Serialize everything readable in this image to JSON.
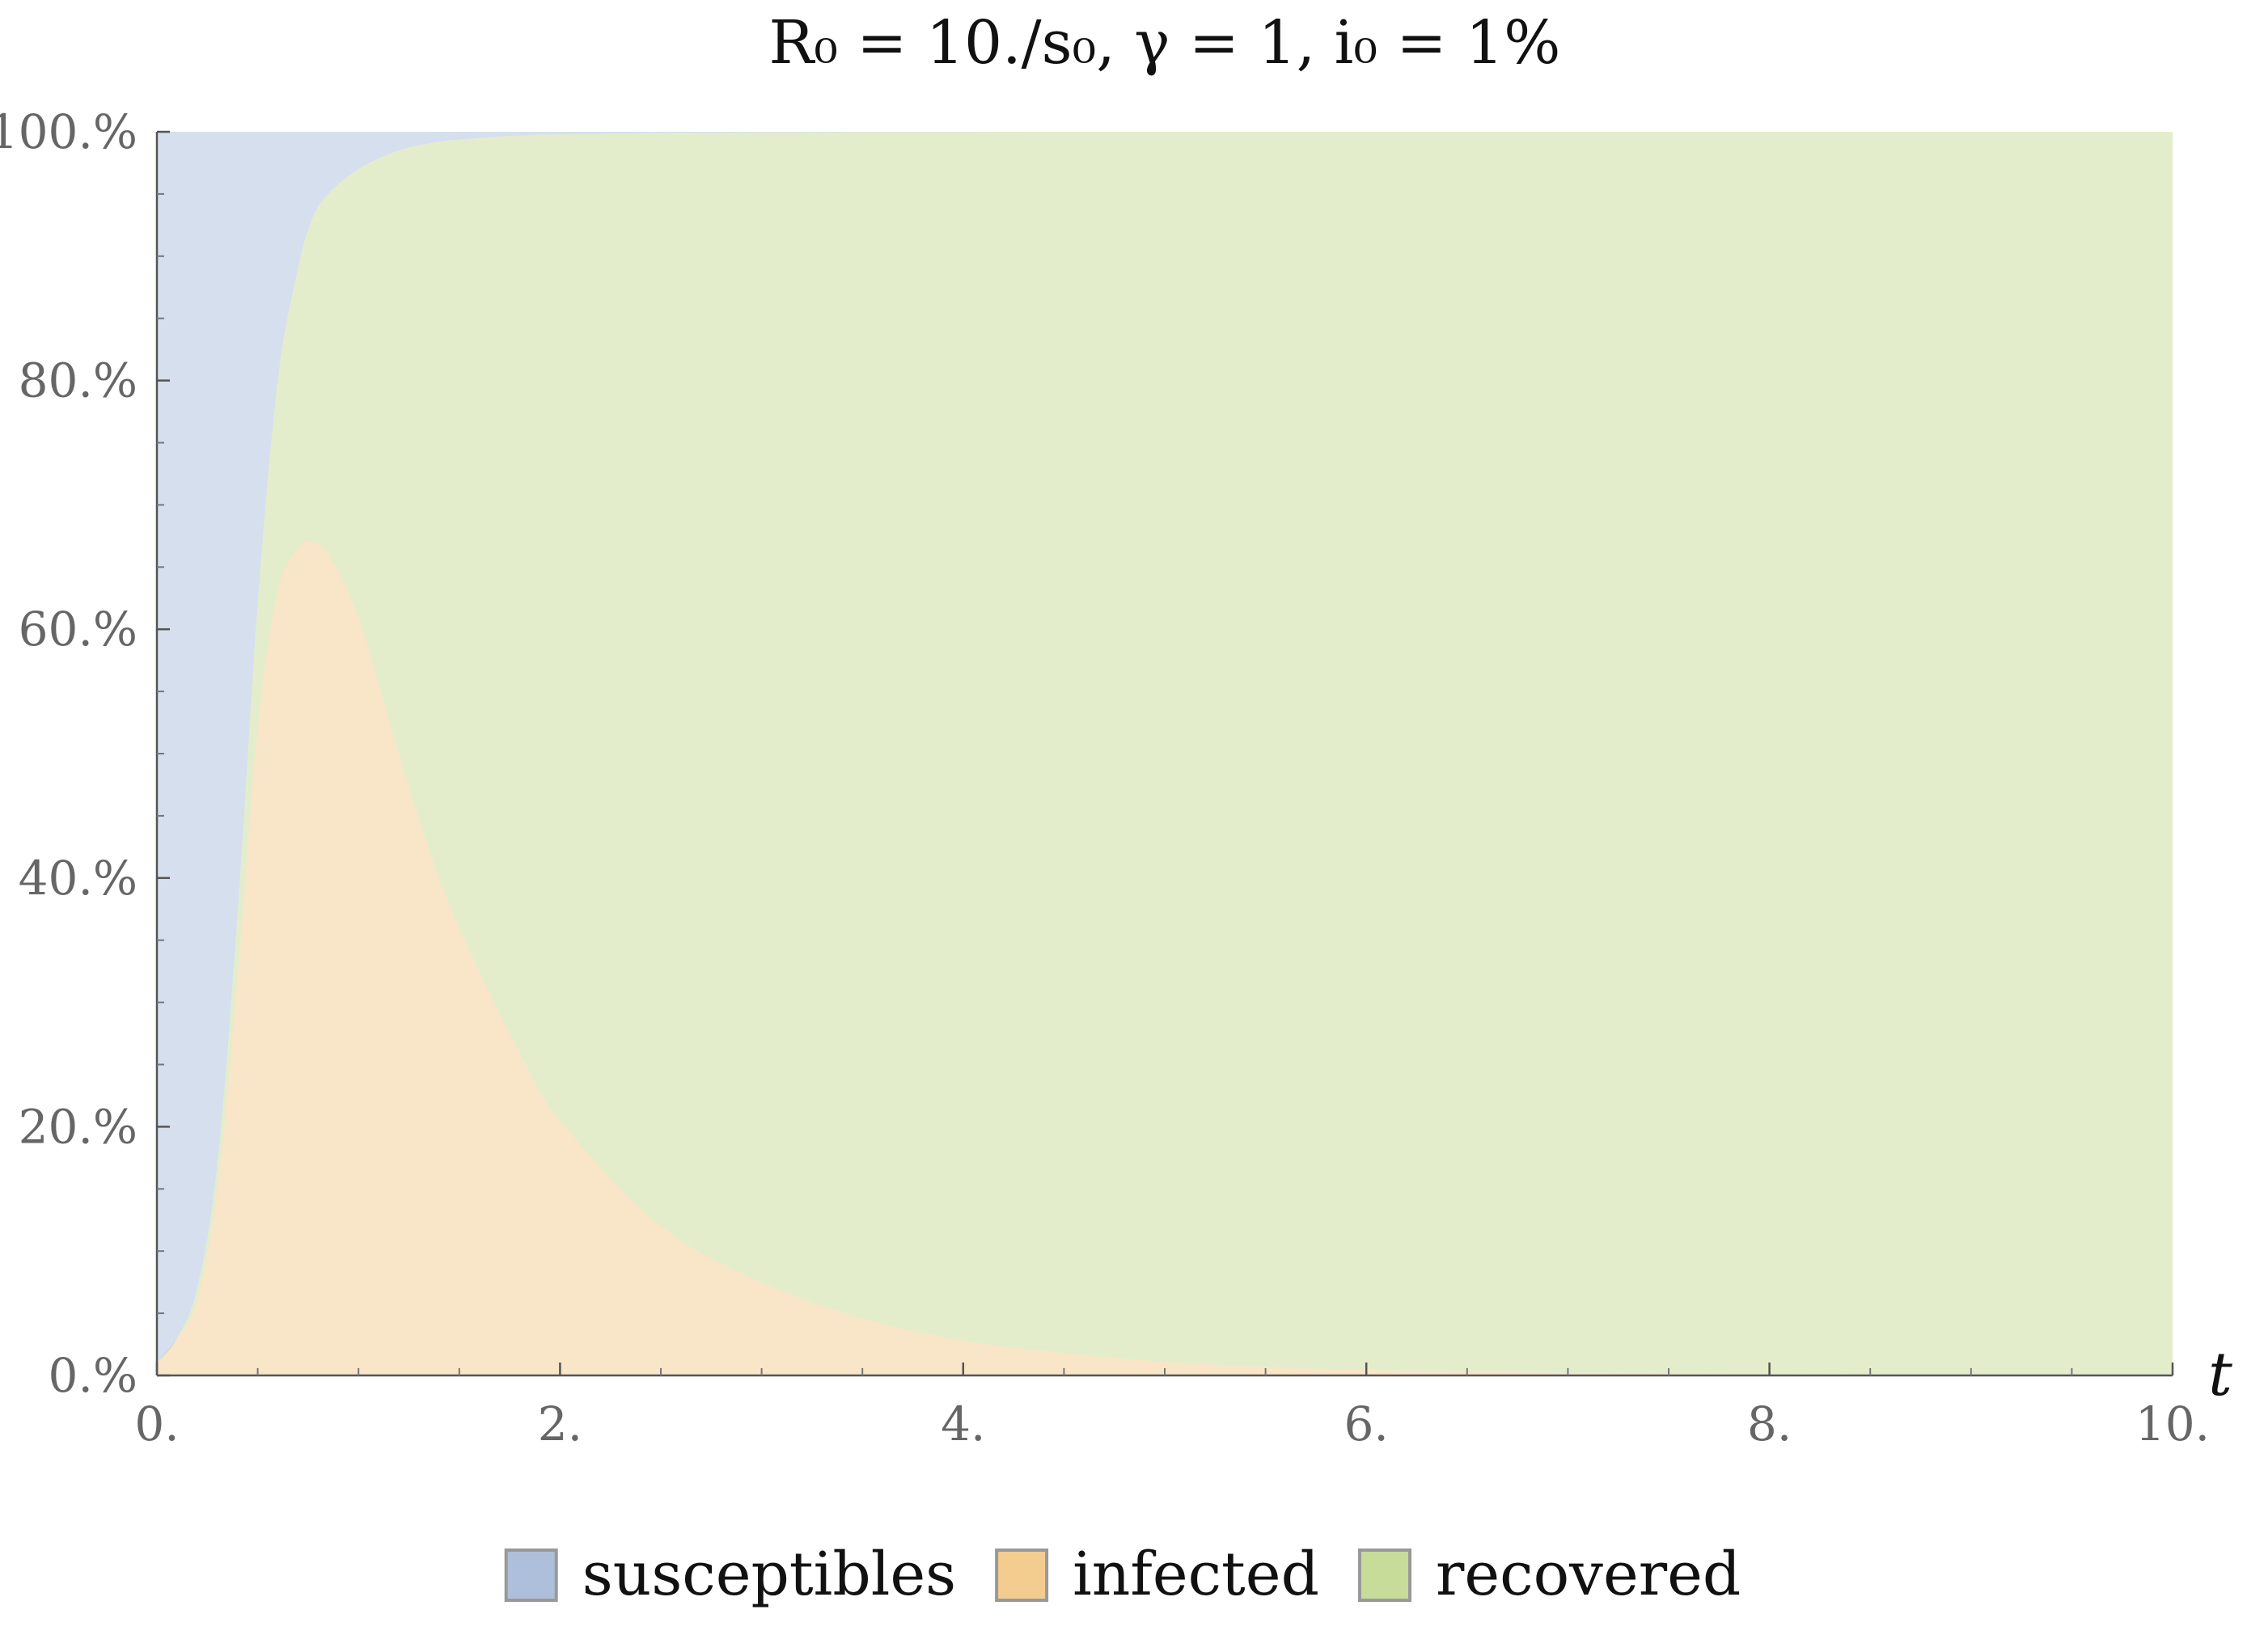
{
  "chart_data": {
    "type": "area",
    "stacked": true,
    "title": "R₀ = 10./s₀,  γ = 1,  i₀ = 1%",
    "xlabel": "t",
    "ylabel": "",
    "xlim": [
      0,
      10
    ],
    "ylim": [
      0,
      100
    ],
    "x_ticks": [
      0,
      2,
      4,
      6,
      8,
      10
    ],
    "x_tick_labels": [
      "0.",
      "2.",
      "4.",
      "6.",
      "8.",
      "10."
    ],
    "y_ticks": [
      0,
      20,
      40,
      60,
      80,
      100
    ],
    "y_tick_labels": [
      "0.%",
      "20.%",
      "40.%",
      "60.%",
      "80.%",
      "100.%"
    ],
    "grid": false,
    "legend_position": "bottom",
    "x": [
      0,
      0.1,
      0.2,
      0.3,
      0.4,
      0.5,
      0.6,
      0.7,
      0.77,
      0.85,
      1.0,
      1.2,
      1.4,
      1.6,
      1.8,
      2.0,
      2.5,
      3.0,
      3.5,
      4.0,
      4.5,
      5.0,
      5.5,
      6.0,
      7.0,
      8.0,
      10.0
    ],
    "series": [
      {
        "name": "susceptibles",
        "color": "#aebfdc",
        "values": [
          99,
          97,
          93,
          83,
          63,
          38,
          20,
          11,
          7,
          5,
          3,
          1.5,
          0.8,
          0.5,
          0.3,
          0.2,
          0.1,
          0.05,
          0.02,
          0.01,
          0,
          0,
          0,
          0,
          0,
          0,
          0
        ]
      },
      {
        "name": "infected",
        "color": "#f3cc8f",
        "values": [
          1,
          3,
          6,
          15,
          32,
          52,
          63,
          66.5,
          67,
          66,
          61,
          50,
          40,
          32.5,
          26,
          20.5,
          12,
          7.5,
          4.6,
          2.8,
          1.8,
          1.1,
          0.7,
          0.45,
          0.2,
          0.08,
          0.01
        ]
      },
      {
        "name": "recovered",
        "color": "#c7dc99",
        "values": [
          0,
          0,
          1,
          2,
          5,
          10,
          17,
          22.5,
          26,
          29,
          36,
          48.5,
          59.2,
          67,
          73.7,
          79.3,
          87.9,
          92.45,
          95.38,
          97.19,
          98.2,
          98.9,
          99.3,
          99.55,
          99.8,
          99.92,
          99.99
        ]
      }
    ]
  }
}
